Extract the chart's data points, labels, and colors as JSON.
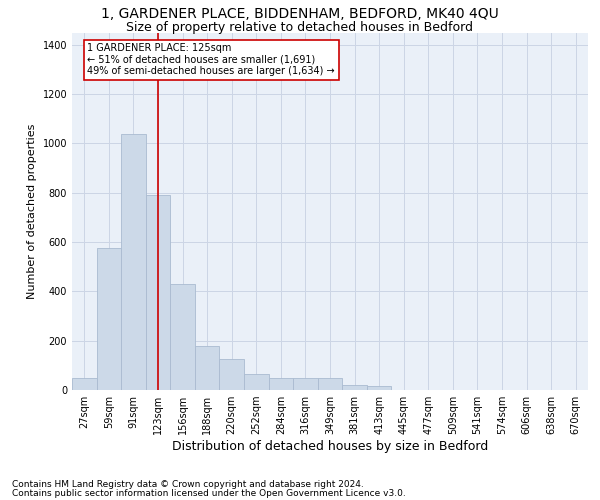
{
  "title1": "1, GARDENER PLACE, BIDDENHAM, BEDFORD, MK40 4QU",
  "title2": "Size of property relative to detached houses in Bedford",
  "xlabel": "Distribution of detached houses by size in Bedford",
  "ylabel": "Number of detached properties",
  "categories": [
    "27sqm",
    "59sqm",
    "91sqm",
    "123sqm",
    "156sqm",
    "188sqm",
    "220sqm",
    "252sqm",
    "284sqm",
    "316sqm",
    "349sqm",
    "381sqm",
    "413sqm",
    "445sqm",
    "477sqm",
    "509sqm",
    "541sqm",
    "574sqm",
    "606sqm",
    "638sqm",
    "670sqm"
  ],
  "values": [
    50,
    575,
    1040,
    790,
    430,
    180,
    125,
    65,
    50,
    50,
    48,
    22,
    15,
    0,
    0,
    0,
    0,
    0,
    0,
    0,
    0
  ],
  "bar_color": "#ccd9e8",
  "bar_edge_color": "#aabbd0",
  "grid_color": "#ccd5e5",
  "bg_color": "#eaf0f8",
  "vline_color": "#cc0000",
  "vline_x": 3.5,
  "annotation_title": "1 GARDENER PLACE: 125sqm",
  "annotation_line1": "← 51% of detached houses are smaller (1,691)",
  "annotation_line2": "49% of semi-detached houses are larger (1,634) →",
  "annotation_box_color": "white",
  "annotation_box_edge": "#cc0000",
  "footnote1": "Contains HM Land Registry data © Crown copyright and database right 2024.",
  "footnote2": "Contains public sector information licensed under the Open Government Licence v3.0.",
  "ylim": [
    0,
    1450
  ],
  "title1_fontsize": 10,
  "title2_fontsize": 9,
  "xlabel_fontsize": 9,
  "ylabel_fontsize": 8,
  "tick_fontsize": 7,
  "footnote_fontsize": 6.5
}
